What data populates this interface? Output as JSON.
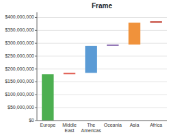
{
  "chart_data": {
    "type": "waterfall",
    "title": "Frame",
    "categories": [
      "Europe",
      "Middle\nEast",
      "The\nAmericas",
      "Oceania",
      "Asia",
      "Africa"
    ],
    "values": [
      180,
      5,
      105,
      5,
      85,
      5
    ],
    "colors": [
      "#4caf50",
      "#e05a4e",
      "#5b9bd5",
      "#8b6db0",
      "#f0923b",
      "#c0392b"
    ],
    "ylim": [
      0,
      420
    ],
    "yticks": [
      {
        "value": 0,
        "label": "$0"
      },
      {
        "value": 50,
        "label": "$50,000,000"
      },
      {
        "value": 100,
        "label": "$100,000,000"
      },
      {
        "value": 150,
        "label": "$150,000,000"
      },
      {
        "value": 200,
        "label": "$200,000,000"
      },
      {
        "value": 250,
        "label": "$250,000,000"
      },
      {
        "value": 300,
        "label": "$300,000,000"
      },
      {
        "value": 350,
        "label": "$350,000,000"
      },
      {
        "value": 400,
        "label": "$400,000,000"
      }
    ],
    "grid": true
  }
}
